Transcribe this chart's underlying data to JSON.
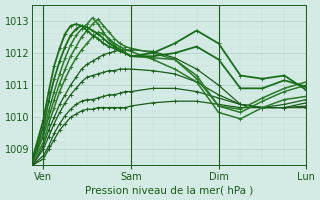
{
  "xlabel": "Pression niveau de la mer( hPa )",
  "ylim": [
    1008.5,
    1013.5
  ],
  "xlim": [
    -12,
    288
  ],
  "yticks": [
    1009,
    1010,
    1011,
    1012,
    1013
  ],
  "day_labels": [
    "Ven",
    "Sam",
    "Dim",
    "Lun"
  ],
  "day_positions": [
    0,
    96,
    192,
    288
  ],
  "bg_color": "#d4ebe5",
  "grid_color_major": "#b0cec8",
  "grid_color_minor": "#c8e0da",
  "line_color_dark": "#1a5c1a",
  "lines": [
    {
      "x": [
        -12,
        0,
        6,
        12,
        18,
        24,
        30,
        36,
        42,
        48,
        54,
        60,
        66,
        72,
        78,
        84,
        90,
        96,
        120,
        144,
        168,
        192,
        216,
        240,
        264,
        288
      ],
      "y": [
        1008.5,
        1008.7,
        1009.0,
        1009.3,
        1009.6,
        1009.8,
        1010.0,
        1010.1,
        1010.2,
        1010.25,
        1010.25,
        1010.3,
        1010.3,
        1010.3,
        1010.3,
        1010.3,
        1010.3,
        1010.35,
        1010.45,
        1010.5,
        1010.5,
        1010.4,
        1010.3,
        1010.3,
        1010.3,
        1010.3
      ],
      "lw": 0.9,
      "color": "#1a5c1a"
    },
    {
      "x": [
        -12,
        0,
        6,
        12,
        18,
        24,
        30,
        36,
        42,
        48,
        54,
        60,
        66,
        72,
        78,
        84,
        90,
        96,
        120,
        144,
        168,
        192,
        216,
        240,
        264,
        288
      ],
      "y": [
        1008.5,
        1008.8,
        1009.1,
        1009.5,
        1009.8,
        1010.05,
        1010.25,
        1010.4,
        1010.5,
        1010.55,
        1010.55,
        1010.6,
        1010.65,
        1010.7,
        1010.7,
        1010.75,
        1010.8,
        1010.8,
        1010.9,
        1010.9,
        1010.8,
        1010.6,
        1010.4,
        1010.3,
        1010.3,
        1010.35
      ],
      "lw": 0.9,
      "color": "#1a5c1a"
    },
    {
      "x": [
        -12,
        0,
        6,
        12,
        18,
        24,
        30,
        36,
        42,
        48,
        54,
        60,
        66,
        72,
        78,
        84,
        90,
        96,
        120,
        144,
        168,
        192,
        216,
        240,
        264,
        288
      ],
      "y": [
        1008.5,
        1009.0,
        1009.4,
        1009.8,
        1010.15,
        1010.45,
        1010.7,
        1010.9,
        1011.1,
        1011.25,
        1011.3,
        1011.35,
        1011.4,
        1011.45,
        1011.45,
        1011.5,
        1011.5,
        1011.5,
        1011.45,
        1011.35,
        1011.1,
        1010.7,
        1010.4,
        1010.3,
        1010.3,
        1010.45
      ],
      "lw": 0.9,
      "color": "#1a5c1a"
    },
    {
      "x": [
        -12,
        0,
        6,
        12,
        18,
        24,
        30,
        36,
        42,
        48,
        54,
        60,
        66,
        72,
        78,
        84,
        90,
        96,
        120,
        144,
        168,
        192,
        216,
        240,
        264,
        288
      ],
      "y": [
        1008.5,
        1009.1,
        1009.6,
        1010.0,
        1010.4,
        1010.7,
        1011.0,
        1011.25,
        1011.5,
        1011.65,
        1011.75,
        1011.85,
        1011.95,
        1012.0,
        1012.05,
        1012.1,
        1012.1,
        1012.1,
        1012.05,
        1011.85,
        1011.5,
        1011.0,
        1010.4,
        1010.3,
        1010.4,
        1010.55
      ],
      "lw": 0.9,
      "color": "#1a5c1a"
    },
    {
      "x": [
        -12,
        0,
        6,
        12,
        18,
        24,
        30,
        36,
        42,
        48,
        54,
        60,
        66,
        72,
        78,
        84,
        90,
        96,
        120,
        144,
        168,
        192,
        216,
        240,
        264,
        288
      ],
      "y": [
        1008.6,
        1009.2,
        1009.8,
        1010.3,
        1010.8,
        1011.2,
        1011.55,
        1011.85,
        1012.1,
        1012.3,
        1012.5,
        1012.65,
        1012.6,
        1012.45,
        1012.3,
        1012.2,
        1012.1,
        1012.05,
        1011.8,
        1011.5,
        1011.1,
        1010.15,
        1009.95,
        1010.3,
        1010.55,
        1010.65
      ],
      "lw": 1.1,
      "color": "#2a7a2a"
    },
    {
      "x": [
        -12,
        0,
        6,
        12,
        18,
        24,
        30,
        36,
        42,
        48,
        54,
        60,
        66,
        72,
        78,
        84,
        90,
        96,
        120,
        144,
        168,
        192,
        216,
        240,
        264,
        288
      ],
      "y": [
        1008.6,
        1009.4,
        1010.0,
        1010.55,
        1011.05,
        1011.5,
        1011.9,
        1012.2,
        1012.5,
        1012.7,
        1012.9,
        1013.05,
        1012.85,
        1012.65,
        1012.45,
        1012.3,
        1012.2,
        1012.15,
        1012.0,
        1011.8,
        1011.2,
        1010.35,
        1010.15,
        1010.5,
        1010.8,
        1011.0
      ],
      "lw": 1.1,
      "color": "#2a7a2a"
    },
    {
      "x": [
        -12,
        0,
        6,
        12,
        18,
        24,
        30,
        36,
        42,
        48,
        54,
        60,
        66,
        72,
        78,
        84,
        90,
        96,
        120,
        144,
        168,
        192,
        216,
        240,
        264,
        288
      ],
      "y": [
        1008.6,
        1009.5,
        1010.2,
        1010.8,
        1011.35,
        1011.85,
        1012.25,
        1012.55,
        1012.75,
        1012.9,
        1013.1,
        1012.9,
        1012.65,
        1012.4,
        1012.25,
        1012.1,
        1012.0,
        1011.9,
        1011.85,
        1011.8,
        1011.3,
        1010.35,
        1010.25,
        1010.6,
        1010.9,
        1011.1
      ],
      "lw": 1.1,
      "color": "#2a7a2a"
    },
    {
      "x": [
        -12,
        0,
        6,
        12,
        18,
        24,
        30,
        36,
        42,
        48,
        54,
        60,
        66,
        72,
        78,
        84,
        90,
        96,
        120,
        144,
        168,
        192,
        216,
        240,
        264,
        288
      ],
      "y": [
        1008.6,
        1009.7,
        1010.5,
        1011.2,
        1011.75,
        1012.2,
        1012.55,
        1012.75,
        1012.85,
        1012.8,
        1012.7,
        1012.6,
        1012.45,
        1012.3,
        1012.2,
        1012.1,
        1012.0,
        1011.9,
        1011.9,
        1012.0,
        1012.2,
        1011.8,
        1010.9,
        1010.9,
        1011.15,
        1010.95
      ],
      "lw": 1.3,
      "color": "#1a6e1a"
    },
    {
      "x": [
        -12,
        0,
        6,
        12,
        18,
        24,
        30,
        36,
        42,
        48,
        54,
        60,
        66,
        72,
        78,
        84,
        90,
        96,
        120,
        144,
        168,
        192,
        216,
        240,
        264,
        288
      ],
      "y": [
        1008.7,
        1009.9,
        1010.8,
        1011.6,
        1012.15,
        1012.6,
        1012.85,
        1012.9,
        1012.85,
        1012.7,
        1012.55,
        1012.45,
        1012.3,
        1012.2,
        1012.15,
        1012.05,
        1012.0,
        1011.9,
        1012.0,
        1012.3,
        1012.7,
        1012.3,
        1011.3,
        1011.2,
        1011.3,
        1010.85
      ],
      "lw": 1.3,
      "color": "#1a6e1a"
    }
  ],
  "marker_lines": [
    {
      "x": [
        -12,
        -6,
        0,
        6,
        12,
        18,
        24,
        30,
        36,
        42,
        48,
        54,
        60,
        66,
        72,
        78,
        84,
        90
      ],
      "y": [
        1008.5,
        1008.55,
        1008.7,
        1009.0,
        1009.3,
        1009.6,
        1009.8,
        1010.0,
        1010.1,
        1010.2,
        1010.25,
        1010.25,
        1010.3,
        1010.3,
        1010.3,
        1010.3,
        1010.3,
        1010.3
      ],
      "lw": 0.9,
      "color": "#1a5c1a"
    }
  ],
  "xlabel_fontsize": 7.5,
  "tick_fontsize": 7,
  "minor_ytick_interval": 0.2,
  "minor_xtick_interval": 24
}
